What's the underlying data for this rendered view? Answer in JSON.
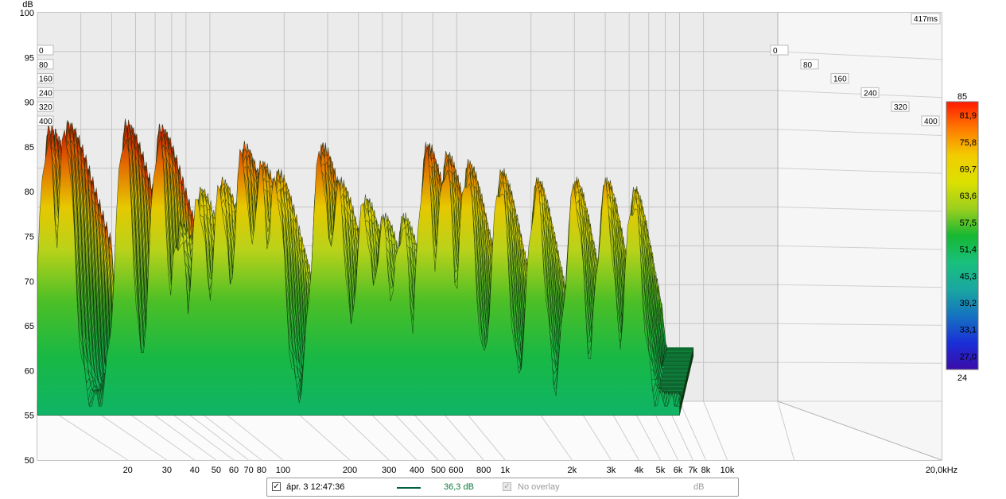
{
  "chart_data": {
    "type": "waterfall",
    "y_unit": "dB",
    "ylim": [
      50,
      100
    ],
    "y_ticks": [
      "100",
      "95",
      "90",
      "85",
      "80",
      "75",
      "70",
      "65",
      "60",
      "55",
      "50"
    ],
    "x_scale": "log",
    "xlim_hz": [
      20,
      20000
    ],
    "x_ticks": [
      {
        "hz": 20,
        "label": "20"
      },
      {
        "hz": 30,
        "label": "30"
      },
      {
        "hz": 40,
        "label": "40"
      },
      {
        "hz": 50,
        "label": "50"
      },
      {
        "hz": 60,
        "label": "60"
      },
      {
        "hz": 70,
        "label": "70"
      },
      {
        "hz": 80,
        "label": "80"
      },
      {
        "hz": 100,
        "label": "100"
      },
      {
        "hz": 200,
        "label": "200"
      },
      {
        "hz": 300,
        "label": "300"
      },
      {
        "hz": 400,
        "label": "400"
      },
      {
        "hz": 500,
        "label": "500"
      },
      {
        "hz": 600,
        "label": "600"
      },
      {
        "hz": 800,
        "label": "800"
      },
      {
        "hz": 1000,
        "label": "1k"
      },
      {
        "hz": 2000,
        "label": "2k"
      },
      {
        "hz": 3000,
        "label": "3k"
      },
      {
        "hz": 4000,
        "label": "4k"
      },
      {
        "hz": 5000,
        "label": "5k"
      },
      {
        "hz": 6000,
        "label": "6k"
      },
      {
        "hz": 7000,
        "label": "7k"
      },
      {
        "hz": 8000,
        "label": "8k"
      },
      {
        "hz": 10000,
        "label": "10k"
      },
      {
        "hz": 20000,
        "label": "20,0kHz"
      }
    ],
    "time_ticks_ms": [
      "0",
      "80",
      "160",
      "240",
      "320",
      "400"
    ],
    "time_max_label": "417ms",
    "colorbar": {
      "max": "85",
      "min": "24",
      "labels": [
        "81,9",
        "75,8",
        "69,7",
        "63,6",
        "57,5",
        "51,4",
        "45,3",
        "39,2",
        "33,1",
        "27,0"
      ],
      "stops": [
        "#ff1a00",
        "#ff7a00",
        "#f2cc00",
        "#dce000",
        "#9ccf1e",
        "#16b832",
        "#19c07c",
        "#1aa7a0",
        "#1573c0",
        "#1a2fd8",
        "#3a0ca8"
      ]
    },
    "grid": true,
    "peaks": [
      {
        "hz": 22,
        "db": 86.0
      },
      {
        "hz": 26,
        "db": 86.5
      },
      {
        "hz": 45,
        "db": 86.5
      },
      {
        "hz": 62,
        "db": 86.0
      },
      {
        "hz": 75,
        "db": 75.0
      },
      {
        "hz": 90,
        "db": 79.0
      },
      {
        "hz": 110,
        "db": 80.0
      },
      {
        "hz": 135,
        "db": 84.0
      },
      {
        "hz": 160,
        "db": 82.0
      },
      {
        "hz": 185,
        "db": 81.0
      },
      {
        "hz": 280,
        "db": 84.0
      },
      {
        "hz": 330,
        "db": 80.0
      },
      {
        "hz": 420,
        "db": 78.0
      },
      {
        "hz": 500,
        "db": 76.0
      },
      {
        "hz": 600,
        "db": 76.0
      },
      {
        "hz": 750,
        "db": 84.0
      },
      {
        "hz": 900,
        "db": 83.0
      },
      {
        "hz": 1100,
        "db": 82.0
      },
      {
        "hz": 1500,
        "db": 81.0
      },
      {
        "hz": 2100,
        "db": 80.0
      },
      {
        "hz": 3000,
        "db": 80.0
      },
      {
        "hz": 4000,
        "db": 80.0
      },
      {
        "hz": 5200,
        "db": 79.0
      }
    ]
  },
  "legend": {
    "checkbox_mark": "✓",
    "measurement_name": "ápr. 3 12:47:36",
    "line_color": "#006040",
    "level": "36,3 dB",
    "overlay_label": "No overlay",
    "overlay_unit": "dB"
  }
}
